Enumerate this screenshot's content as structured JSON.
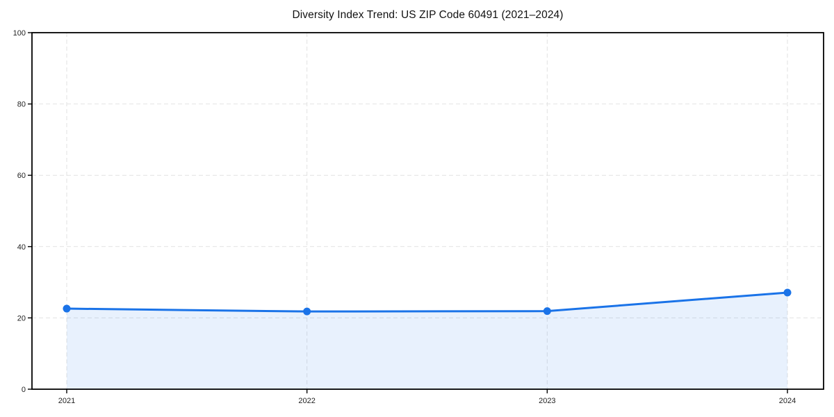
{
  "chart_data": {
    "type": "area",
    "title": "Diversity Index Trend: US ZIP Code 60491 (2021–2024)",
    "categories": [
      "2021",
      "2022",
      "2023",
      "2024"
    ],
    "values": [
      22.6,
      21.8,
      21.9,
      27.1
    ],
    "series_name": "Diversity Index",
    "xlabel": "",
    "ylabel": "",
    "ylim": [
      0,
      100
    ],
    "yticks": [
      0,
      20,
      40,
      60,
      80,
      100
    ],
    "grid": true,
    "grid_style": "dashed",
    "legend_position": "none",
    "colors": {
      "line": "#1a73e8",
      "marker": "#1a73e8",
      "area_fill": "#1a73e8",
      "area_opacity": 0.1,
      "gridline": "#e2e2e2",
      "spine": "#000000",
      "tick_label": "#222222",
      "title": "#111111",
      "background": "#ffffff"
    }
  }
}
